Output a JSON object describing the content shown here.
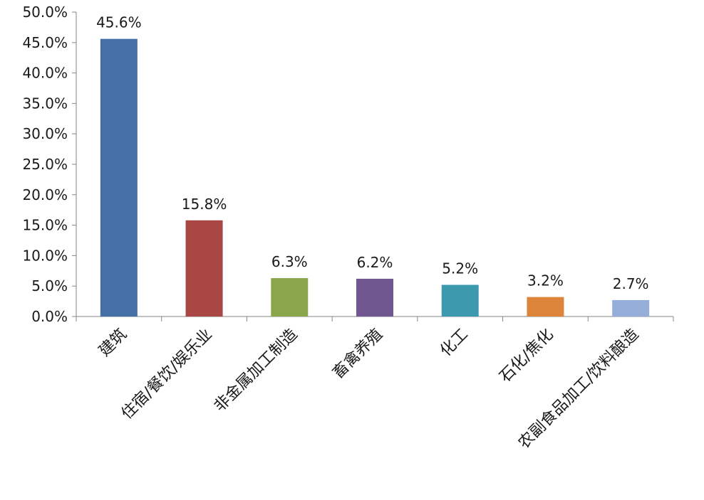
{
  "chart_data": {
    "type": "bar",
    "categories": [
      "建筑",
      "住宿/餐饮/娱乐业",
      "非金属加工制造",
      "畜禽养殖",
      "化工",
      "石化/焦化",
      "农副食品加工/饮料酿造"
    ],
    "values": [
      45.6,
      15.8,
      6.3,
      6.2,
      5.2,
      3.2,
      2.7
    ],
    "data_labels": [
      "45.6%",
      "15.8%",
      "6.3%",
      "6.2%",
      "5.2%",
      "3.2%",
      "2.7%"
    ],
    "colors": [
      "#4570A6",
      "#A84744",
      "#8AA54A",
      "#70578F",
      "#3D9AAE",
      "#DD843B",
      "#94AED9"
    ],
    "ylim": [
      0,
      50
    ],
    "yticks": [
      "0.0%",
      "5.0%",
      "10.0%",
      "15.0%",
      "20.0%",
      "25.0%",
      "30.0%",
      "35.0%",
      "40.0%",
      "45.0%",
      "50.0%"
    ],
    "title": "",
    "xlabel": "",
    "ylabel": "",
    "grid": false,
    "legend": "none"
  }
}
